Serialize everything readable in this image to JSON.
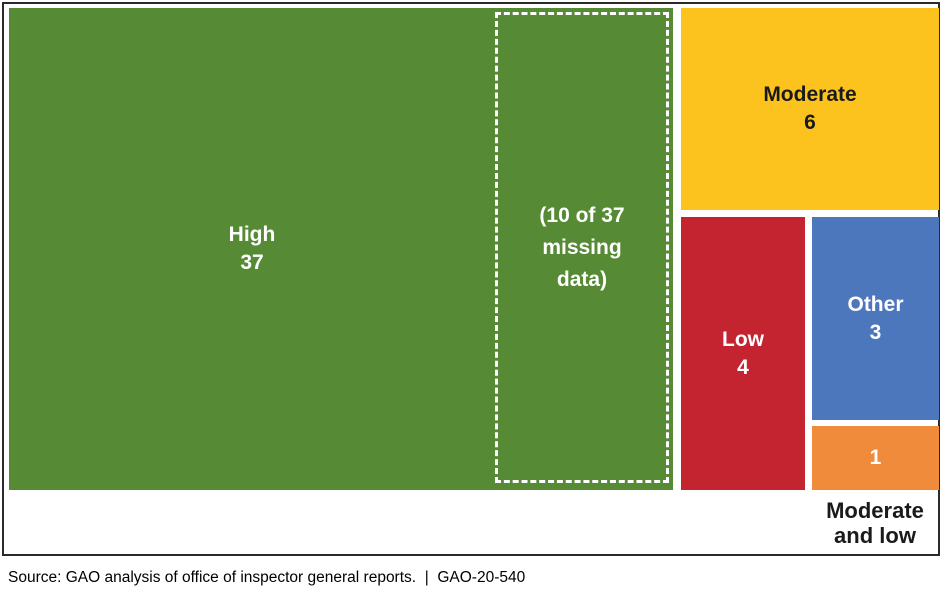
{
  "chart_data": {
    "type": "treemap",
    "title": "",
    "legend_position": "none",
    "grid": false,
    "tiles": [
      {
        "label": "High",
        "value": 37,
        "color": "#568A35",
        "text_color": "#ffffff",
        "annotation": "(10 of 37 missing data)",
        "annotation_lines": [
          "(10 of 37",
          "missing",
          "data)"
        ],
        "annotation_style": "white-dashed-outline"
      },
      {
        "label": "Moderate",
        "value": 6,
        "color": "#FCC31F",
        "text_color": "#1a1a1a"
      },
      {
        "label": "Low",
        "value": 4,
        "color": "#C4242F",
        "text_color": "#ffffff"
      },
      {
        "label": "Other",
        "value": 3,
        "color": "#4C77BD",
        "text_color": "#ffffff"
      },
      {
        "label": "Moderate and low",
        "value": 1,
        "color": "#EF8B3B",
        "text_color": "#ffffff",
        "label_position": "outside-below"
      }
    ],
    "source": "Source: GAO analysis of office of inspector general reports.  |  GAO-20-540"
  }
}
